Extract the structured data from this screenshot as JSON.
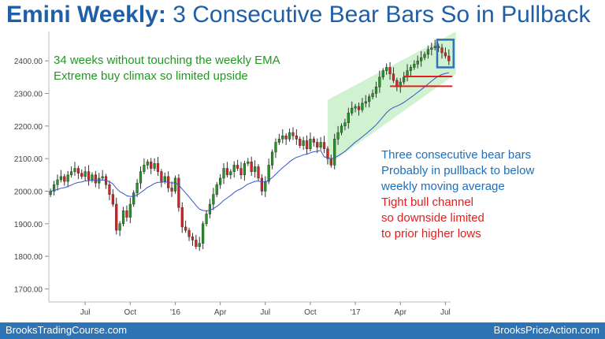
{
  "title_bold": "Emini Weekly:",
  "title_rest": " 3 Consecutive Bear Bars So in Pullback",
  "footer": {
    "left": "BrooksTradingCourse.com",
    "right": "BrooksPriceAction.com"
  },
  "annotations": {
    "green": [
      "34 weeks without touching the weekly EMA",
      "Extreme buy climax so limited upside"
    ],
    "blue": [
      "Three consecutive bear bars",
      "Probably in pullback to below",
      "weekly moving average"
    ],
    "red": [
      "Tight bull channel",
      "so downside limited",
      "to prior higher lows"
    ]
  },
  "colors": {
    "bull": "#1f9a1f",
    "bear": "#e02020",
    "ema": "#3355cc",
    "channel": "#c8f0c8",
    "box": "#2e74b5",
    "title": "#1f5fa8"
  },
  "chart_data": {
    "type": "candlestick",
    "y_ticks": [
      "1700.00",
      "1800.00",
      "1900.00",
      "2000.00",
      "2100.00",
      "2200.00",
      "2300.00",
      "2400.00"
    ],
    "ylim": [
      1660,
      2490
    ],
    "x_ticks": [
      {
        "label": "Jul",
        "week": 10
      },
      {
        "label": "Oct",
        "week": 23
      },
      {
        "label": "'16",
        "week": 36
      },
      {
        "label": "Apr",
        "week": 49
      },
      {
        "label": "Jul",
        "week": 62
      },
      {
        "label": "Oct",
        "week": 75
      },
      {
        "label": "'17",
        "week": 88
      },
      {
        "label": "Apr",
        "week": 101
      },
      {
        "label": "Jul",
        "week": 114
      }
    ],
    "weeks_total": 116,
    "closes": [
      2000,
      2020,
      2035,
      2045,
      2030,
      2050,
      2060,
      2070,
      2055,
      2045,
      2060,
      2035,
      2050,
      2025,
      2040,
      2045,
      2020,
      1990,
      1960,
      1880,
      1900,
      1940,
      1920,
      1960,
      1995,
      2025,
      2060,
      2080,
      2090,
      2070,
      2085,
      2060,
      2030,
      2045,
      2010,
      2000,
      2040,
      1950,
      1890,
      1880,
      1860,
      1850,
      1830,
      1840,
      1900,
      1930,
      1960,
      1990,
      2020,
      2040,
      2070,
      2050,
      2060,
      2080,
      2070,
      2050,
      2085,
      2090,
      2060,
      2075,
      2040,
      2000,
      2030,
      2080,
      2120,
      2150,
      2160,
      2170,
      2160,
      2180,
      2170,
      2160,
      2140,
      2155,
      2130,
      2160,
      2150,
      2135,
      2150,
      2130,
      2100,
      2080,
      2160,
      2180,
      2200,
      2210,
      2240,
      2255,
      2260,
      2250,
      2270,
      2275,
      2290,
      2300,
      2320,
      2350,
      2370,
      2380,
      2360,
      2340,
      2320,
      2335,
      2350,
      2370,
      2380,
      2390,
      2400,
      2410,
      2420,
      2435,
      2440,
      2445,
      2440,
      2425,
      2415,
      2400
    ],
    "series": [
      {
        "name": "weekly EMA",
        "type": "line"
      }
    ],
    "highlight_last_bars": 3,
    "support_levels": [
      2352,
      2322
    ]
  }
}
